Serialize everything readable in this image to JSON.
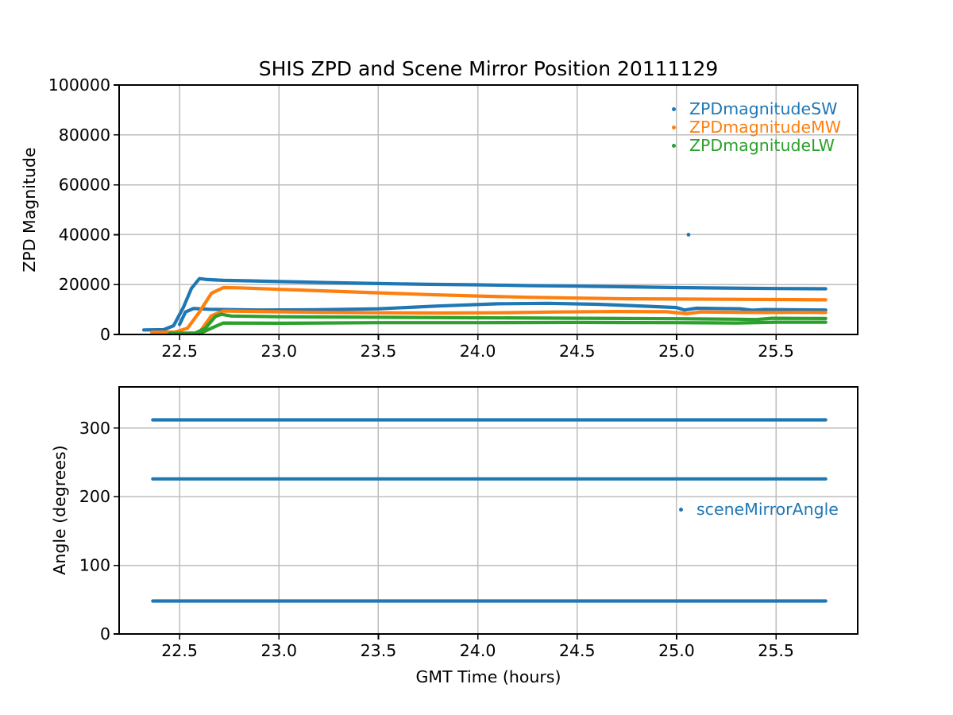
{
  "figure": {
    "title": "SHIS ZPD and Scene Mirror Position 20111129",
    "background": "#ffffff",
    "grid_color": "#bdbdbd",
    "spine_color": "#000000"
  },
  "chart_data": [
    {
      "type": "scatter",
      "title": "SHIS ZPD and Scene Mirror Position 20111129",
      "xlabel": "",
      "ylabel": "ZPD Magnitude",
      "xlim": [
        22.196,
        25.911
      ],
      "ylim": [
        0,
        100000
      ],
      "grid": true,
      "legend_position": "upper right",
      "xticks": [
        22.5,
        23.0,
        23.5,
        24.0,
        24.5,
        25.0,
        25.5
      ],
      "xtick_labels": [
        "22.5",
        "23.0",
        "23.5",
        "24.0",
        "24.5",
        "25.0",
        "25.5"
      ],
      "yticks": [
        0,
        20000,
        40000,
        60000,
        80000,
        100000
      ],
      "ytick_labels": [
        "0",
        "20000",
        "40000",
        "60000",
        "80000",
        "100000"
      ],
      "series": [
        {
          "name": "ZPDmagnitudeSW",
          "color": "#1f77b4",
          "branches": [
            [
              [
                22.32,
                1800
              ],
              [
                22.42,
                1900
              ],
              [
                22.47,
                3500
              ],
              [
                22.52,
                11000
              ],
              [
                22.56,
                18500
              ],
              [
                22.6,
                22400
              ],
              [
                22.64,
                22000
              ],
              [
                22.72,
                21700
              ],
              [
                22.85,
                21500
              ],
              [
                23.0,
                21200
              ],
              [
                23.25,
                20800
              ],
              [
                23.5,
                20400
              ],
              [
                23.75,
                20100
              ],
              [
                24.0,
                19900
              ],
              [
                24.25,
                19600
              ],
              [
                24.5,
                19400
              ],
              [
                24.75,
                19100
              ],
              [
                25.0,
                18800
              ],
              [
                25.25,
                18600
              ],
              [
                25.5,
                18400
              ],
              [
                25.75,
                18300
              ]
            ],
            [
              [
                22.5,
                4000
              ],
              [
                22.53,
                9000
              ],
              [
                22.57,
                10400
              ],
              [
                22.65,
                10100
              ],
              [
                22.9,
                9800
              ],
              [
                23.2,
                9900
              ],
              [
                23.5,
                10300
              ],
              [
                23.8,
                11400
              ],
              [
                24.1,
                12300
              ],
              [
                24.35,
                12500
              ],
              [
                24.6,
                12100
              ],
              [
                24.85,
                11300
              ],
              [
                25.0,
                10800
              ],
              [
                25.04,
                9800
              ],
              [
                25.1,
                10500
              ],
              [
                25.2,
                10400
              ],
              [
                25.32,
                10300
              ],
              [
                25.38,
                9700
              ],
              [
                25.44,
                10000
              ],
              [
                25.55,
                9900
              ],
              [
                25.75,
                9800
              ]
            ],
            [
              [
                25.06,
                40000
              ]
            ]
          ]
        },
        {
          "name": "ZPDmagnitudeMW",
          "color": "#ff7f0e",
          "branches": [
            [
              [
                22.36,
                900
              ],
              [
                22.48,
                1000
              ],
              [
                22.54,
                2500
              ],
              [
                22.6,
                9000
              ],
              [
                22.66,
                16500
              ],
              [
                22.72,
                18800
              ],
              [
                22.8,
                18700
              ],
              [
                23.0,
                18100
              ],
              [
                23.25,
                17400
              ],
              [
                23.5,
                16700
              ],
              [
                23.75,
                16000
              ],
              [
                24.0,
                15400
              ],
              [
                24.25,
                14900
              ],
              [
                24.5,
                14600
              ],
              [
                24.75,
                14300
              ],
              [
                25.0,
                14200
              ],
              [
                25.25,
                14100
              ],
              [
                25.5,
                14000
              ],
              [
                25.75,
                13900
              ]
            ],
            [
              [
                22.6,
                800
              ],
              [
                22.66,
                7500
              ],
              [
                22.72,
                9400
              ],
              [
                22.9,
                9200
              ],
              [
                23.2,
                8900
              ],
              [
                23.5,
                8700
              ],
              [
                23.8,
                8600
              ],
              [
                24.1,
                8700
              ],
              [
                24.4,
                9000
              ],
              [
                24.7,
                9200
              ],
              [
                24.95,
                9100
              ],
              [
                25.05,
                8300
              ],
              [
                25.12,
                9000
              ],
              [
                25.3,
                8900
              ],
              [
                25.45,
                8800
              ],
              [
                25.6,
                8900
              ],
              [
                25.75,
                8800
              ]
            ]
          ]
        },
        {
          "name": "ZPDmagnitudeLW",
          "color": "#2ca02c",
          "branches": [
            [
              [
                22.45,
                400
              ],
              [
                22.58,
                600
              ],
              [
                22.63,
                2500
              ],
              [
                22.68,
                7200
              ],
              [
                22.71,
                8100
              ],
              [
                22.76,
                7400
              ],
              [
                23.0,
                7100
              ],
              [
                23.5,
                6900
              ],
              [
                24.0,
                6700
              ],
              [
                24.5,
                6500
              ],
              [
                25.0,
                6300
              ],
              [
                25.3,
                6100
              ],
              [
                25.4,
                6000
              ],
              [
                25.48,
                6500
              ],
              [
                25.75,
                6400
              ]
            ],
            [
              [
                22.6,
                300
              ],
              [
                22.66,
                2500
              ],
              [
                22.72,
                4600
              ],
              [
                23.0,
                4500
              ],
              [
                23.5,
                4700
              ],
              [
                24.0,
                4700
              ],
              [
                24.5,
                4800
              ],
              [
                25.0,
                4700
              ],
              [
                25.3,
                4600
              ],
              [
                25.5,
                4900
              ],
              [
                25.75,
                4900
              ]
            ]
          ]
        }
      ]
    },
    {
      "type": "scatter",
      "title": "",
      "xlabel": "GMT Time (hours)",
      "ylabel": "Angle (degrees)",
      "xlim": [
        22.196,
        25.911
      ],
      "ylim": [
        0,
        360
      ],
      "grid": true,
      "legend_position": "center right",
      "xticks": [
        22.5,
        23.0,
        23.5,
        24.0,
        24.5,
        25.0,
        25.5
      ],
      "xtick_labels": [
        "22.5",
        "23.0",
        "23.5",
        "24.0",
        "24.5",
        "25.0",
        "25.5"
      ],
      "yticks": [
        0,
        100,
        200,
        300
      ],
      "ytick_labels": [
        "0",
        "100",
        "200",
        "300"
      ],
      "series": [
        {
          "name": "sceneMirrorAngle",
          "color": "#1f77b4",
          "branches": [
            [
              [
                22.365,
                312
              ],
              [
                25.75,
                312
              ]
            ],
            [
              [
                22.365,
                226
              ],
              [
                25.75,
                226
              ]
            ],
            [
              [
                22.365,
                48
              ],
              [
                25.75,
                48
              ]
            ]
          ]
        }
      ]
    }
  ]
}
